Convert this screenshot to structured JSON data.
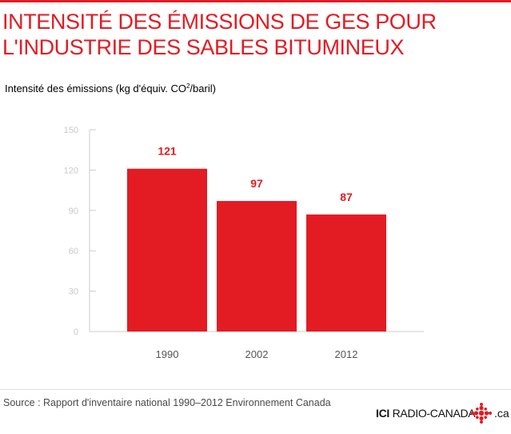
{
  "title": "INTENSITÉ DES ÉMISSIONS DE GES POUR L'INDUSTRIE DES SABLES BITUMINEUX",
  "y_axis_label": {
    "main": "Intensité des émissions (kg d'équiv. CO",
    "sup": "2",
    "tail": "/baril)"
  },
  "source": "Source : Rapport d'inventaire national 1990–2012 Environnement Canada",
  "logo": {
    "ici": "ICI",
    "name": "RADIO-CANADA",
    "suffix": ".ca"
  },
  "colors": {
    "accent": "#e31b23",
    "axis": "#cccccc",
    "tick_text": "#c8c8c8"
  },
  "chart_data": {
    "type": "bar",
    "categories": [
      "1990",
      "2002",
      "2012"
    ],
    "values": [
      121,
      97,
      87
    ],
    "data_labels": [
      "121",
      "97",
      "87"
    ],
    "yticks": [
      0,
      30,
      60,
      90,
      120,
      150
    ],
    "ylim": [
      0,
      150
    ],
    "grid": false
  }
}
